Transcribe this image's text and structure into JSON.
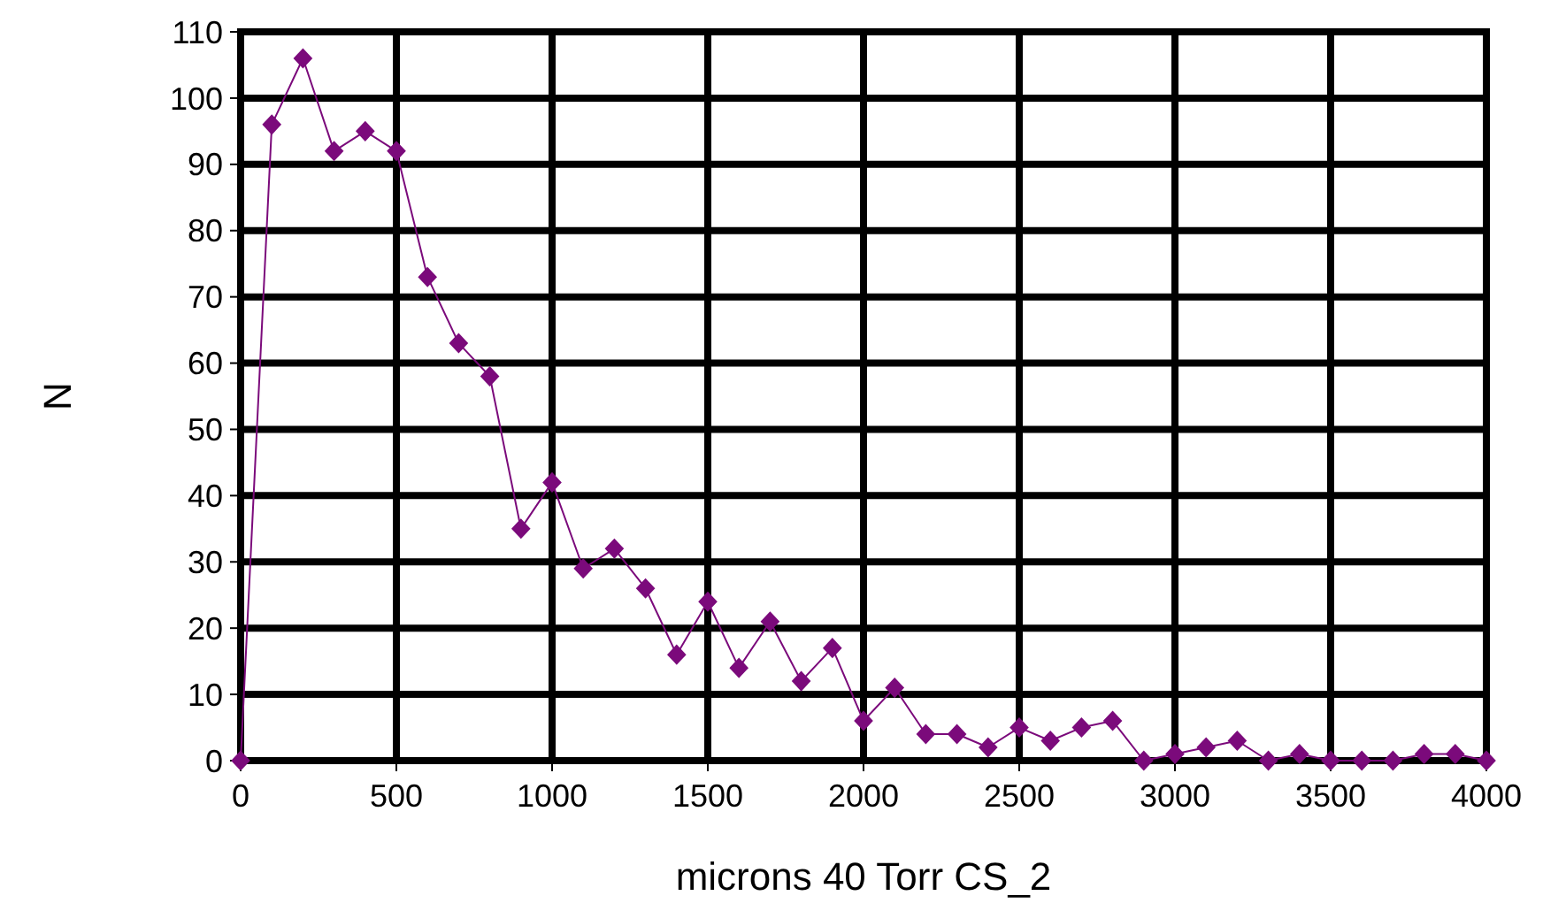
{
  "chart_data": {
    "type": "line",
    "xlabel": "microns 40 Torr CS_2",
    "ylabel": "N",
    "x": [
      0,
      100,
      200,
      300,
      400,
      500,
      600,
      700,
      800,
      900,
      1000,
      1100,
      1200,
      1300,
      1400,
      1500,
      1600,
      1700,
      1800,
      1900,
      2000,
      2100,
      2200,
      2300,
      2400,
      2500,
      2600,
      2700,
      2800,
      2900,
      3000,
      3100,
      3200,
      3300,
      3400,
      3500,
      3600,
      3700,
      3800,
      3900,
      4000
    ],
    "series": [
      {
        "color": "#7b0a7b",
        "values": [
          0,
          96,
          106,
          92,
          95,
          92,
          73,
          63,
          58,
          35,
          42,
          29,
          32,
          26,
          16,
          24,
          14,
          21,
          12,
          17,
          6,
          11,
          4,
          4,
          2,
          5,
          3,
          5,
          6,
          0,
          1,
          2,
          3,
          0,
          1,
          0,
          0,
          0,
          1,
          1,
          0
        ]
      }
    ],
    "xlim": [
      0,
      4000
    ],
    "xticks": [
      0,
      500,
      1000,
      1500,
      2000,
      2500,
      3000,
      3500,
      4000
    ],
    "ylim": [
      0,
      110
    ],
    "yticks": [
      0,
      10,
      20,
      30,
      40,
      50,
      60,
      70,
      80,
      90,
      100,
      110
    ],
    "grid": true,
    "marker": "diamond",
    "line_style": "solid"
  }
}
